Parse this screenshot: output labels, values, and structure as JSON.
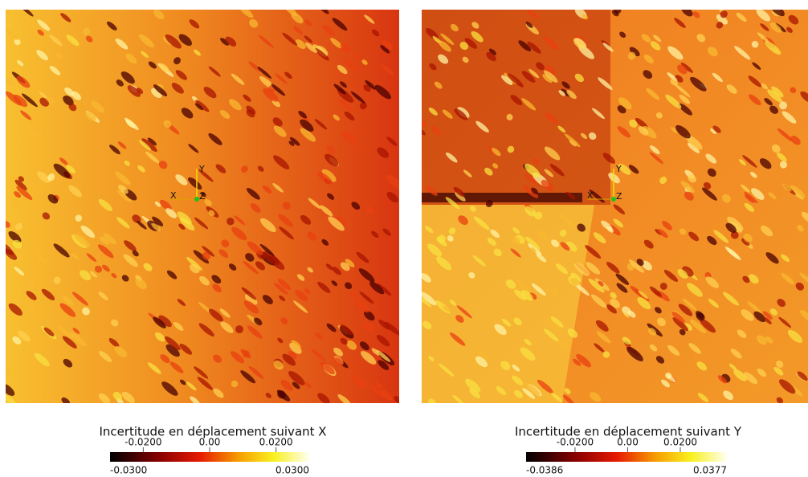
{
  "panels": [
    {
      "title": "Incertitude en déplacement suivant X",
      "range": [
        {
          "value": -0.03,
          "label": "-0.0300"
        },
        {
          "value": 0.03,
          "label": "0.0300"
        }
      ],
      "ticks": [
        {
          "value": -0.02,
          "label": "-0.0200"
        },
        {
          "value": 0,
          "label": "0.00"
        },
        {
          "value": 0.02,
          "label": "0.0200"
        }
      ],
      "axes": [
        "X",
        "Y",
        "Z"
      ]
    },
    {
      "title": "Incertitude en déplacement suivant Y",
      "range": [
        {
          "value": -0.0386,
          "label": "-0.0386"
        },
        {
          "value": 0.0377,
          "label": "0.0377"
        }
      ],
      "ticks": [
        {
          "value": -0.02,
          "label": "-0.0200"
        },
        {
          "value": 0,
          "label": "0.00"
        },
        {
          "value": 0.02,
          "label": "0.0200"
        }
      ],
      "axes": [
        "X",
        "Y",
        "Z"
      ]
    }
  ]
}
